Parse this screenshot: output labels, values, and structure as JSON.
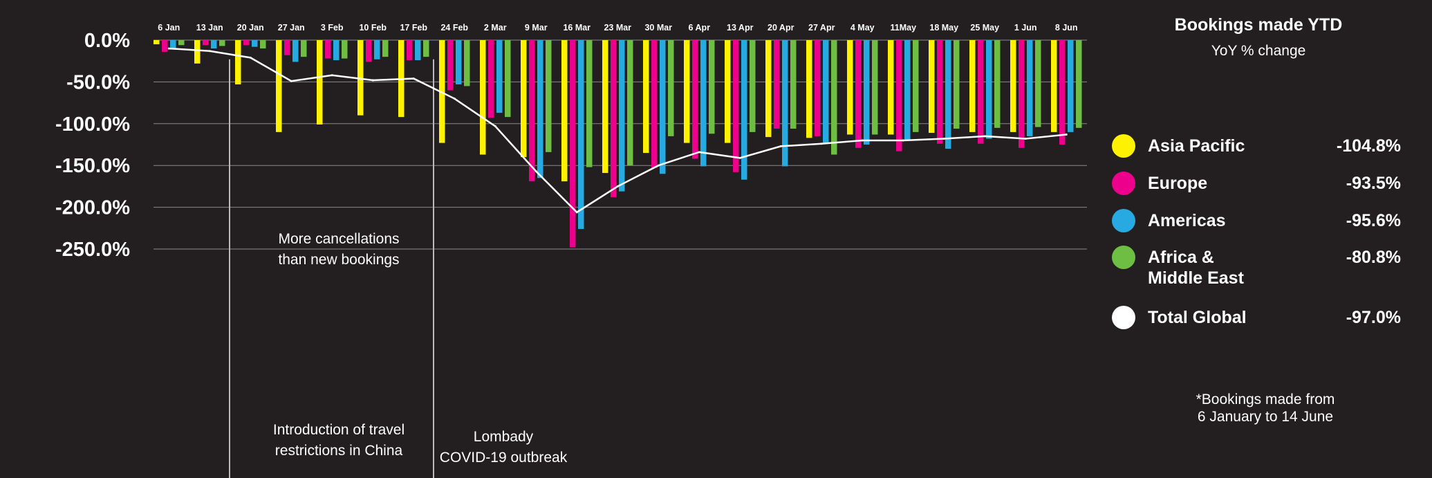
{
  "chart_data": {
    "type": "bar",
    "title": "Bookings made YTD",
    "subtitle": "YoY % change",
    "footnote": "*Bookings made from\n6 January to 14 June",
    "xlabel": "",
    "ylabel": "",
    "ylim": [
      -250,
      0
    ],
    "yticks": [
      0,
      -50,
      -100,
      -150,
      -200,
      -250
    ],
    "ytick_labels": [
      "0.0%",
      "-50.0%",
      "-100.0%",
      "-150.0%",
      "-200.0%",
      "-250.0%"
    ],
    "grid": true,
    "legend_position": "right",
    "categories": [
      "6 Jan",
      "13 Jan",
      "20 Jan",
      "27 Jan",
      "3 Feb",
      "10 Feb",
      "17 Feb",
      "24 Feb",
      "2 Mar",
      "9 Mar",
      "16 Mar",
      "23 Mar",
      "30 Mar",
      "6 Apr",
      "13 Apr",
      "20 Apr",
      "27 Apr",
      "4 May",
      "11May",
      "18 May",
      "25 May",
      "1 Jun",
      "8 Jun"
    ],
    "series": [
      {
        "name": "Asia Pacific",
        "color": "#fff200",
        "kind": "bar",
        "values": [
          -5,
          -28,
          -53,
          -110,
          -101,
          -90,
          -92,
          -123,
          -137,
          -140,
          -169,
          -159,
          -135,
          -123,
          -123,
          -116,
          -117,
          -113,
          -113,
          -111,
          -110,
          -110,
          -110
        ]
      },
      {
        "name": "Europe",
        "color": "#ec008c",
        "kind": "bar",
        "values": [
          -14,
          -6,
          -6,
          -18,
          -22,
          -26,
          -24,
          -60,
          -93,
          -169,
          -248,
          -188,
          -153,
          -142,
          -158,
          -106,
          -115,
          -129,
          -133,
          -124,
          -124,
          -129,
          -125
        ]
      },
      {
        "name": "Americas",
        "color": "#27aae1",
        "kind": "bar",
        "values": [
          -10,
          -10,
          -8,
          -26,
          -24,
          -23,
          -24,
          -53,
          -87,
          -165,
          -226,
          -181,
          -160,
          -151,
          -167,
          -151,
          -123,
          -125,
          -120,
          -130,
          -118,
          -115,
          -110
        ]
      },
      {
        "name": "Africa & Middle East",
        "color": "#6ebe44",
        "kind": "bar",
        "values": [
          -6,
          -7,
          -10,
          -20,
          -22,
          -20,
          -20,
          -55,
          -92,
          -134,
          -152,
          -150,
          -115,
          -112,
          -110,
          -106,
          -137,
          -113,
          -110,
          -106,
          -105,
          -104,
          -105
        ]
      },
      {
        "name": "Total Global",
        "color": "#ffffff",
        "kind": "line",
        "values": [
          -10,
          -13,
          -21,
          -49,
          -42,
          -48,
          -46,
          -70,
          -103,
          -157,
          -206,
          -175,
          -150,
          -134,
          -141,
          -127,
          -124,
          -120,
          -120,
          -118,
          -115,
          -118,
          -113
        ]
      }
    ],
    "legend": [
      {
        "label": "Asia Pacific",
        "value": "-104.8%",
        "color": "#fff200"
      },
      {
        "label": "Europe",
        "value": "-93.5%",
        "color": "#ec008c"
      },
      {
        "label": "Americas",
        "value": "-95.6%",
        "color": "#27aae1"
      },
      {
        "label": "Africa &\nMiddle East",
        "value": "-80.8%",
        "color": "#6ebe44"
      },
      {
        "label": "Total Global",
        "value": "-97.0%",
        "color": "#ffffff"
      }
    ],
    "annotations": [
      {
        "text": "More cancellations\nthan new bookings",
        "x": "20 Jan",
        "y": -125
      },
      {
        "text": "Introduction of travel\nrestrictions in China",
        "x": "20 Jan",
        "y": -235
      },
      {
        "text": "Lombady\nCOVID-19 outbreak",
        "x": "24 Feb",
        "y": -235
      }
    ],
    "vertical_markers": [
      "20 Jan",
      "24 Feb"
    ]
  }
}
